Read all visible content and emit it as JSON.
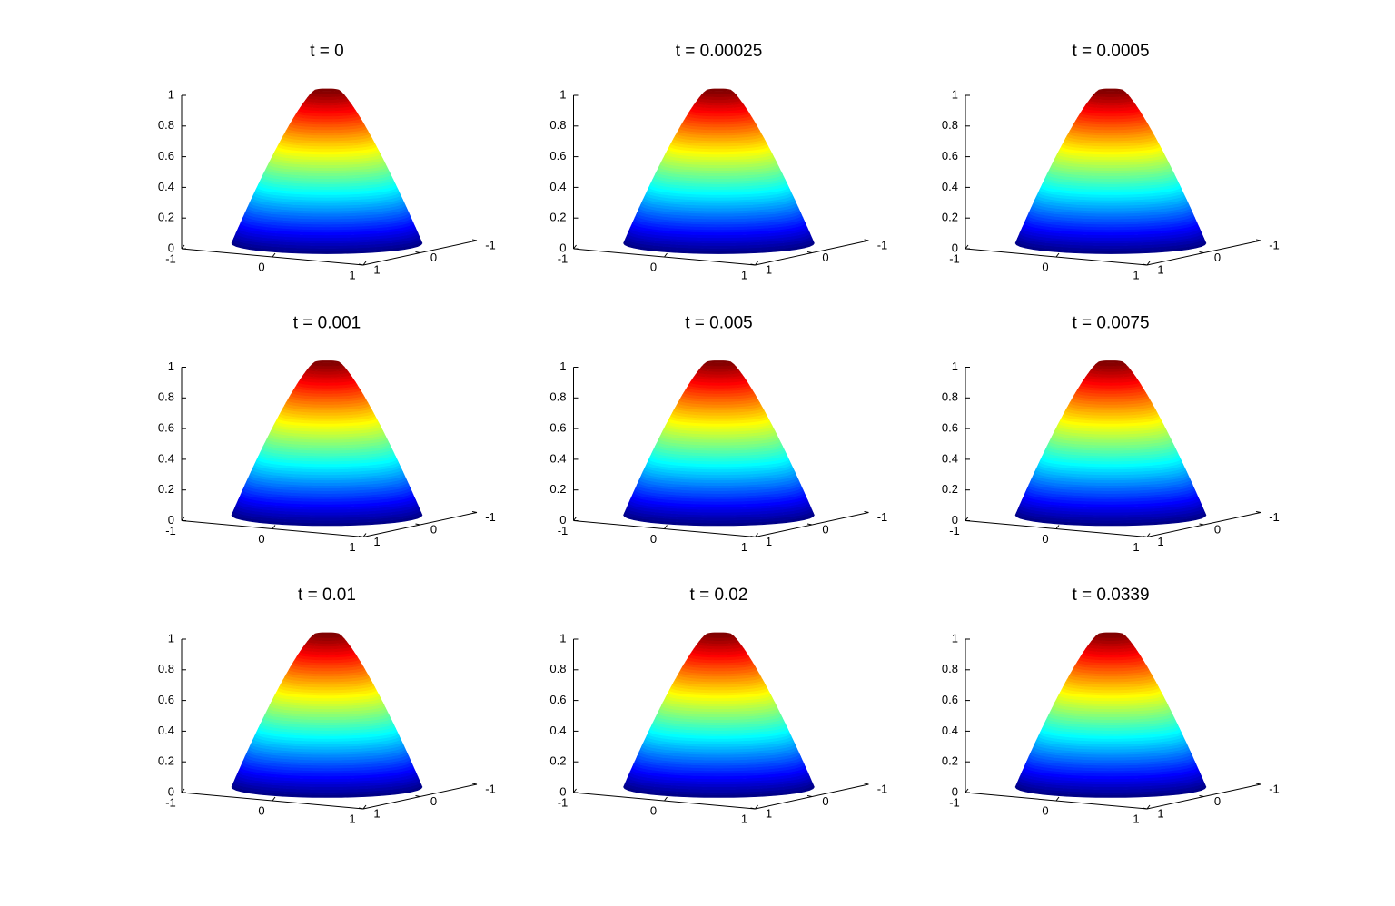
{
  "chart_data": [
    {
      "type": "surface",
      "title": "t = 0",
      "colormap": "jet",
      "zlim": [
        0,
        1
      ],
      "zticks": [
        0,
        0.2,
        0.4,
        0.6,
        0.8,
        1
      ],
      "xlim": [
        -1,
        1
      ],
      "xticks": [
        -1,
        0,
        1
      ],
      "ylim": [
        -1,
        1
      ],
      "yticks": [
        -1,
        0,
        1
      ]
    },
    {
      "type": "surface",
      "title": "t = 0.00025",
      "colormap": "jet",
      "zlim": [
        0,
        1
      ],
      "zticks": [
        0,
        0.2,
        0.4,
        0.6,
        0.8,
        1
      ],
      "xlim": [
        -1,
        1
      ],
      "xticks": [
        -1,
        0,
        1
      ],
      "ylim": [
        -1,
        1
      ],
      "yticks": [
        -1,
        0,
        1
      ]
    },
    {
      "type": "surface",
      "title": "t = 0.0005",
      "colormap": "jet",
      "zlim": [
        0,
        1
      ],
      "zticks": [
        0,
        0.2,
        0.4,
        0.6,
        0.8,
        1
      ],
      "xlim": [
        -1,
        1
      ],
      "xticks": [
        -1,
        0,
        1
      ],
      "ylim": [
        -1,
        1
      ],
      "yticks": [
        -1,
        0,
        1
      ]
    },
    {
      "type": "surface",
      "title": "t = 0.001",
      "colormap": "jet",
      "zlim": [
        0,
        1
      ],
      "zticks": [
        0,
        0.2,
        0.4,
        0.6,
        0.8,
        1
      ],
      "xlim": [
        -1,
        1
      ],
      "xticks": [
        -1,
        0,
        1
      ],
      "ylim": [
        -1,
        1
      ],
      "yticks": [
        -1,
        0,
        1
      ]
    },
    {
      "type": "surface",
      "title": "t = 0.005",
      "colormap": "jet",
      "zlim": [
        0,
        1
      ],
      "zticks": [
        0,
        0.2,
        0.4,
        0.6,
        0.8,
        1
      ],
      "xlim": [
        -1,
        1
      ],
      "xticks": [
        -1,
        0,
        1
      ],
      "ylim": [
        -1,
        1
      ],
      "yticks": [
        -1,
        0,
        1
      ]
    },
    {
      "type": "surface",
      "title": "t = 0.0075",
      "colormap": "jet",
      "zlim": [
        0,
        1
      ],
      "zticks": [
        0,
        0.2,
        0.4,
        0.6,
        0.8,
        1
      ],
      "xlim": [
        -1,
        1
      ],
      "xticks": [
        -1,
        0,
        1
      ],
      "ylim": [
        -1,
        1
      ],
      "yticks": [
        -1,
        0,
        1
      ]
    },
    {
      "type": "surface",
      "title": "t = 0.01",
      "colormap": "jet",
      "zlim": [
        0,
        1
      ],
      "zticks": [
        0,
        0.2,
        0.4,
        0.6,
        0.8,
        1
      ],
      "xlim": [
        -1,
        1
      ],
      "xticks": [
        -1,
        0,
        1
      ],
      "ylim": [
        -1,
        1
      ],
      "yticks": [
        -1,
        0,
        1
      ]
    },
    {
      "type": "surface",
      "title": "t = 0.02",
      "colormap": "jet",
      "zlim": [
        0,
        1
      ],
      "zticks": [
        0,
        0.2,
        0.4,
        0.6,
        0.8,
        1
      ],
      "xlim": [
        -1,
        1
      ],
      "xticks": [
        -1,
        0,
        1
      ],
      "ylim": [
        -1,
        1
      ],
      "yticks": [
        -1,
        0,
        1
      ]
    },
    {
      "type": "surface",
      "title": "t = 0.0339",
      "colormap": "jet",
      "zlim": [
        0,
        1
      ],
      "zticks": [
        0,
        0.2,
        0.4,
        0.6,
        0.8,
        1
      ],
      "xlim": [
        -1,
        1
      ],
      "xticks": [
        -1,
        0,
        1
      ],
      "ylim": [
        -1,
        1
      ],
      "yticks": [
        -1,
        0,
        1
      ]
    }
  ]
}
